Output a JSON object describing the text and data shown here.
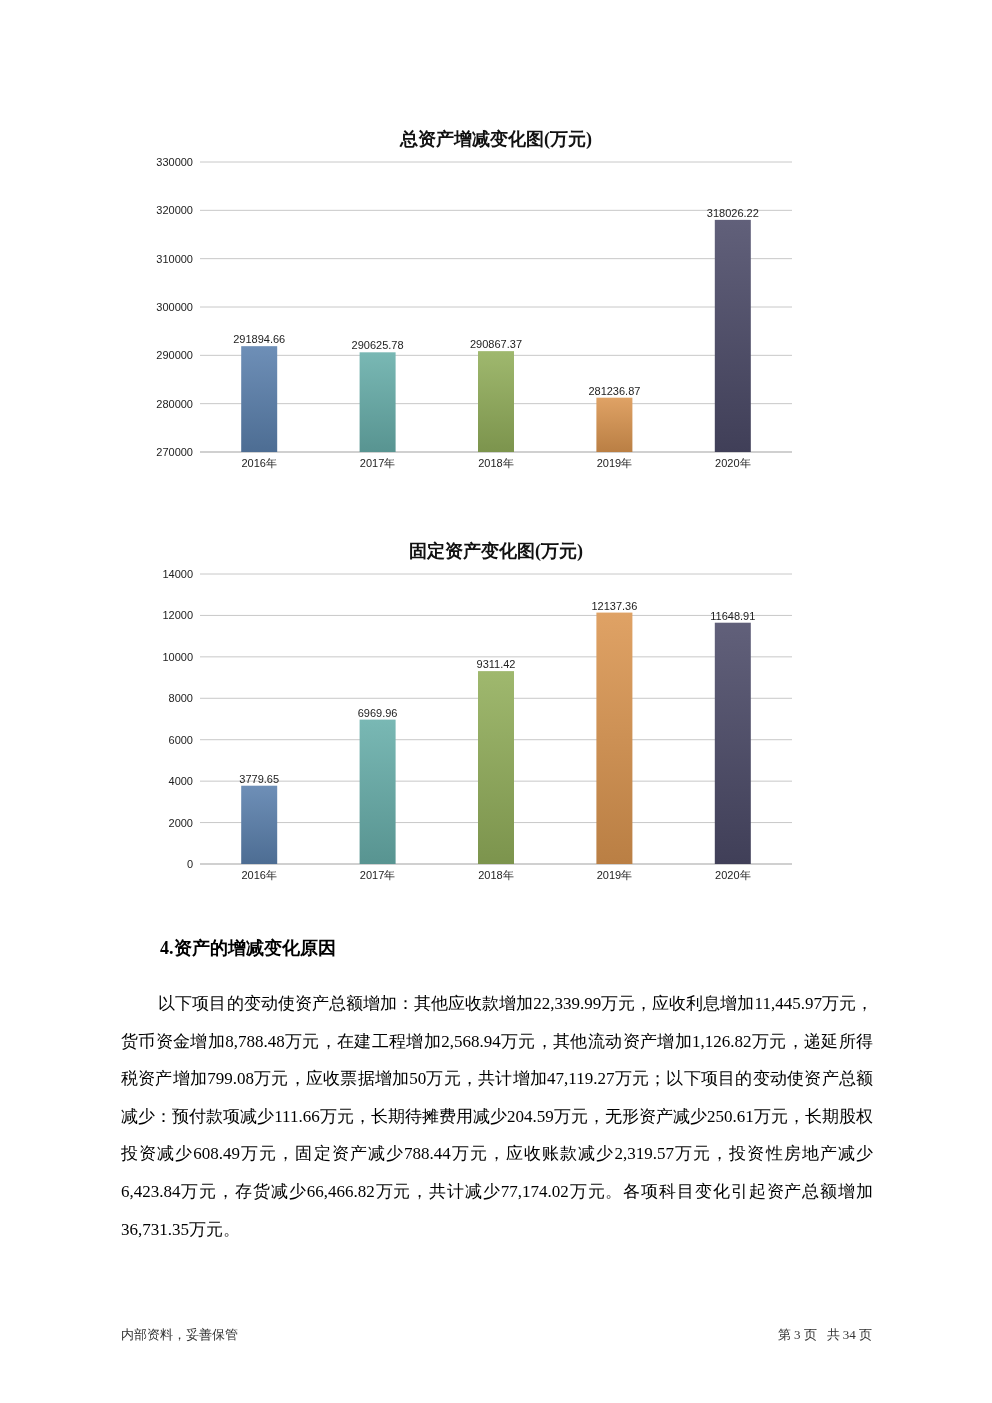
{
  "chart_data": [
    {
      "type": "bar",
      "title": "总资产增减变化图(万元)",
      "categories": [
        "2016年",
        "2017年",
        "2018年",
        "2019年",
        "2020年"
      ],
      "values": [
        291894.66,
        290625.78,
        290867.37,
        281236.87,
        318026.22
      ],
      "colors": [
        "#5a80ad",
        "#67aeaa",
        "#92ae5a",
        "#db9550",
        "#4b4a68"
      ],
      "ylim": [
        270000,
        330000
      ],
      "yticks": [
        270000,
        280000,
        290000,
        300000,
        310000,
        320000,
        330000
      ],
      "grid": "y",
      "data_labels": true
    },
    {
      "type": "bar",
      "title": "固定资产变化图(万元)",
      "categories": [
        "2016年",
        "2017年",
        "2018年",
        "2019年",
        "2020年"
      ],
      "values": [
        3779.65,
        6969.96,
        9311.42,
        12137.36,
        11648.91
      ],
      "colors": [
        "#5a80ad",
        "#67aeaa",
        "#92ae5a",
        "#db9550",
        "#4b4a68"
      ],
      "ylim": [
        0,
        14000
      ],
      "yticks": [
        0,
        2000,
        4000,
        6000,
        8000,
        10000,
        12000,
        14000
      ],
      "grid": "y",
      "data_labels": true,
      "annotations": [
        "4.资产的增减变化原因",
        "以下项目的变动使资产总额增加：其他应收款增加22,339.99万元，应收利息增加11,445.97万元，货币资金增加8,788.48万元，在建工程增加2,568.94万元，其他流动资产增加1,126.82万元，递延所得税资产增加799.08万元，应收票据增加50万元，共计增加47,119.27万元；以下项目的变动使资产总额减少：预付款项减少111.66万元，长期待摊费用减少204.59万元，无形资产减少250.61万元，长期股权投资减少608.49万元，固定资产减少788.44万元，应收账款减少2,319.57万元，投资性房地产减少6,423.84万元，存货减少66,466.82万元，共计减少77,174.02万元。各项科目变化引起资产总额增加36,731.35万元。",
        "内部资料，妥善保管",
        "第 3 页   共 34 页"
      ]
    }
  ]
}
